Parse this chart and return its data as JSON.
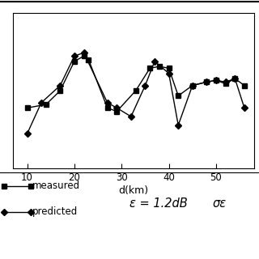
{
  "measured_x": [
    10,
    14,
    17,
    20,
    22,
    23,
    27,
    29,
    33,
    36,
    38,
    40,
    42,
    45,
    48,
    50,
    52,
    54,
    56
  ],
  "measured_y": [
    5.5,
    5.7,
    6.5,
    8.2,
    8.5,
    8.3,
    5.5,
    5.3,
    6.5,
    7.8,
    7.9,
    7.8,
    6.2,
    6.8,
    7.0,
    7.1,
    6.9,
    7.2,
    6.8
  ],
  "predicted_x": [
    10,
    13,
    17,
    20,
    22,
    27,
    29,
    32,
    35,
    37,
    40,
    42,
    45,
    48,
    50,
    52,
    54,
    56
  ],
  "predicted_y": [
    4.0,
    5.8,
    6.8,
    8.5,
    8.7,
    5.8,
    5.5,
    5.0,
    6.8,
    8.2,
    7.5,
    4.5,
    6.8,
    7.0,
    7.1,
    7.0,
    7.2,
    5.5
  ],
  "xlabel": "d(km)",
  "xlim": [
    7,
    58
  ],
  "ylim": [
    2,
    11
  ],
  "xticks": [
    10,
    20,
    30,
    40,
    50
  ],
  "epsilon_text": "ε = 1.2dB",
  "sigma_text": "σε",
  "measured_label": "measured",
  "predicted_label": "predicted",
  "line_color": "#000000",
  "background_color": "#ffffff",
  "marker_size": 4.5,
  "line_width": 1.0
}
